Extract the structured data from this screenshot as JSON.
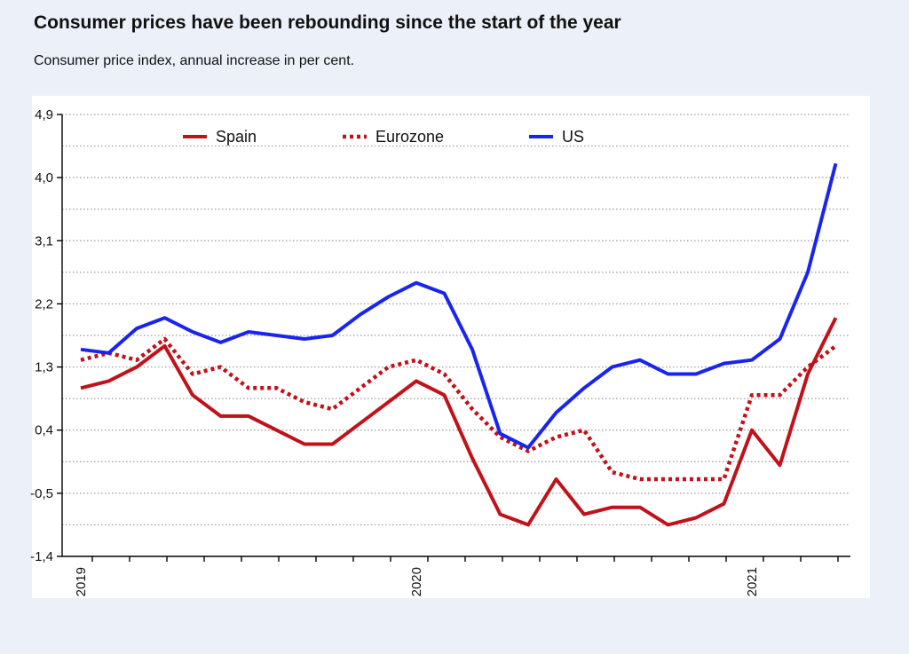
{
  "header": {
    "title": "Consumer prices have been rebounding since the start of the year",
    "subtitle": "Consumer price index, annual increase in per cent."
  },
  "colors": {
    "spain": "#c0121a",
    "eurozone": "#c0121a",
    "us": "#1a24f0",
    "grid": "#9a9a9a",
    "plot_bg": "#ffffff",
    "page_bg": "#ecf1f9"
  },
  "chart_data": {
    "type": "line",
    "title": "Consumer prices have been rebounding since the start of the year",
    "subtitle": "Consumer price index, annual increase in per cent.",
    "xlabel": "",
    "ylabel": "",
    "ylim": [
      -1.4,
      4.9
    ],
    "yticks": [
      "4,9",
      "4,0",
      "3,1",
      "2,2",
      "1,3",
      "0,4",
      "-0,5",
      "-1,4"
    ],
    "ytick_values": [
      4.9,
      4.0,
      3.1,
      2.2,
      1.3,
      0.4,
      -0.5,
      -1.4
    ],
    "x": [
      "2019-01",
      "2019-02",
      "2019-03",
      "2019-04",
      "2019-05",
      "2019-06",
      "2019-07",
      "2019-08",
      "2019-09",
      "2019-10",
      "2019-11",
      "2019-12",
      "2020-01",
      "2020-02",
      "2020-03",
      "2020-04",
      "2020-05",
      "2020-06",
      "2020-07",
      "2020-08",
      "2020-09",
      "2020-10",
      "2020-11",
      "2020-12",
      "2021-01",
      "2021-02",
      "2021-03",
      "2021-04"
    ],
    "xtick_labels": [
      "2019",
      "2020",
      "2021"
    ],
    "xtick_label_positions": [
      "2019-01",
      "2020-01",
      "2021-01"
    ],
    "grid": true,
    "legend_position": "top",
    "series": [
      {
        "name": "Spain",
        "style": "solid",
        "values": [
          1.0,
          1.1,
          1.3,
          1.6,
          0.9,
          0.6,
          0.6,
          0.4,
          0.2,
          0.2,
          0.5,
          0.8,
          1.1,
          0.9,
          0.0,
          -0.8,
          -0.95,
          -0.3,
          -0.8,
          -0.7,
          -0.7,
          -0.95,
          -0.85,
          -0.65,
          0.4,
          -0.1,
          1.2,
          2.0
        ]
      },
      {
        "name": "Eurozone",
        "style": "dotted",
        "values": [
          1.4,
          1.5,
          1.4,
          1.7,
          1.2,
          1.3,
          1.0,
          1.0,
          0.8,
          0.7,
          1.0,
          1.3,
          1.4,
          1.2,
          0.7,
          0.3,
          0.1,
          0.3,
          0.4,
          -0.2,
          -0.3,
          -0.3,
          -0.3,
          -0.3,
          0.9,
          0.9,
          1.3,
          1.6
        ]
      },
      {
        "name": "US",
        "style": "solid",
        "values": [
          1.55,
          1.5,
          1.85,
          2.0,
          1.8,
          1.65,
          1.8,
          1.75,
          1.7,
          1.75,
          2.05,
          2.3,
          2.5,
          2.35,
          1.55,
          0.35,
          0.15,
          0.65,
          1.0,
          1.3,
          1.4,
          1.2,
          1.2,
          1.35,
          1.4,
          1.7,
          2.65,
          4.2
        ]
      }
    ]
  }
}
